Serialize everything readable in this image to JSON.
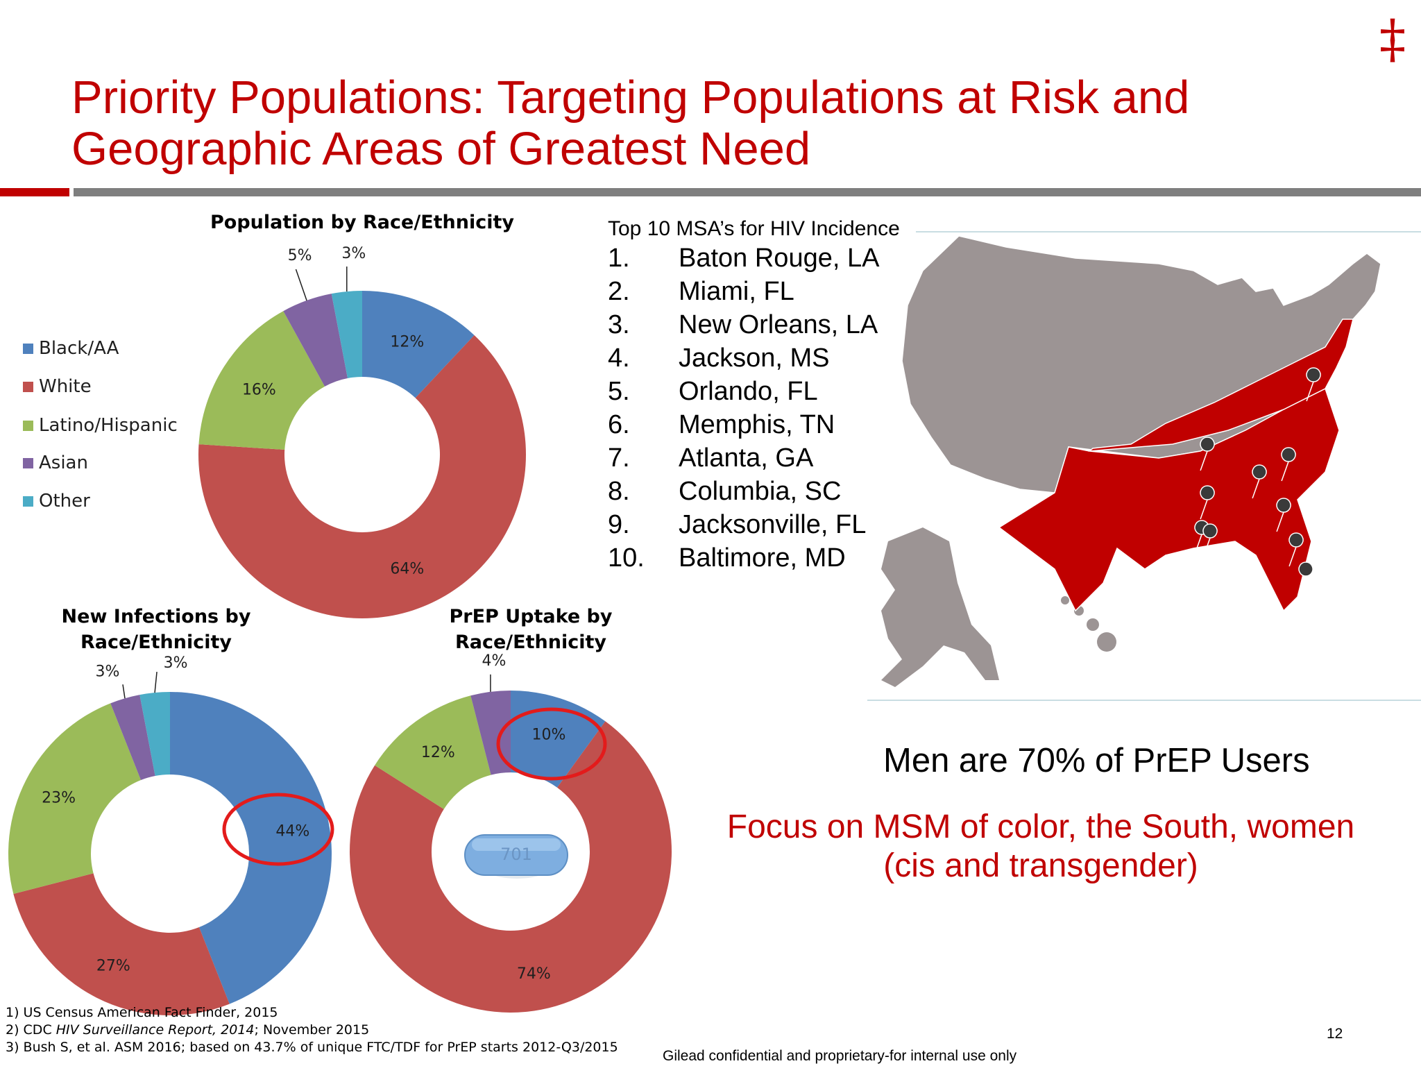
{
  "slide": {
    "logo": "‡",
    "title_line1": "Priority Populations: Targeting Populations at Risk and",
    "title_line2": "Geographic Areas of Greatest Need",
    "page_number": "12",
    "confidential": "Gilead confidential and proprietary-for internal use only",
    "colors": {
      "accent_red": "#c00000",
      "rule_gray": "#7f7f7f"
    }
  },
  "legend": {
    "items": [
      {
        "label": "Black/AA",
        "color": "#4f81bd"
      },
      {
        "label": "White",
        "color": "#c0504d"
      },
      {
        "label": "Latino/Hispanic",
        "color": "#9bbb59"
      },
      {
        "label": "Asian",
        "color": "#8064a2"
      },
      {
        "label": "Other",
        "color": "#4bacc6"
      }
    ]
  },
  "chart_data": [
    {
      "type": "pie",
      "title": "Population by Race/Ethnicity",
      "categories": [
        "Black/AA",
        "White",
        "Latino/Hispanic",
        "Asian",
        "Other"
      ],
      "values": [
        12,
        64,
        16,
        5,
        3
      ],
      "labels": [
        "12%",
        "64%",
        "16%",
        "5%",
        "3%"
      ],
      "colors": [
        "#4f81bd",
        "#c0504d",
        "#9bbb59",
        "#8064a2",
        "#4bacc6"
      ],
      "style": "donut",
      "legend": "left"
    },
    {
      "type": "pie",
      "title": "New Infections by Race/Ethnicity",
      "title_line1": "New Infections by",
      "title_line2": "Race/Ethnicity",
      "categories": [
        "Black/AA",
        "White",
        "Latino/Hispanic",
        "Asian",
        "Other"
      ],
      "values": [
        44,
        27,
        23,
        3,
        3
      ],
      "labels": [
        "44%",
        "27%",
        "23%",
        "3%",
        "3%"
      ],
      "colors": [
        "#4f81bd",
        "#c0504d",
        "#9bbb59",
        "#8064a2",
        "#4bacc6"
      ],
      "style": "donut",
      "highlight": "44%"
    },
    {
      "type": "pie",
      "title": "PrEP Uptake by Race/Ethnicity",
      "title_line1": "PrEP Uptake by",
      "title_line2": "Race/Ethnicity",
      "categories": [
        "Black/AA",
        "White",
        "Latino/Hispanic",
        "Asian"
      ],
      "values": [
        10,
        74,
        12,
        4
      ],
      "labels": [
        "10%",
        "74%",
        "12%",
        "4%"
      ],
      "colors": [
        "#4f81bd",
        "#c0504d",
        "#9bbb59",
        "#8064a2"
      ],
      "style": "donut",
      "highlight": "10%",
      "pill_text": "701"
    }
  ],
  "msa": {
    "title": "Top 10 MSA’s for HIV Incidence",
    "items": [
      {
        "num": "1.",
        "name": "Baton Rouge, LA"
      },
      {
        "num": "2.",
        "name": "Miami, FL"
      },
      {
        "num": "3.",
        "name": "New Orleans, LA"
      },
      {
        "num": "4.",
        "name": "Jackson, MS"
      },
      {
        "num": "5.",
        "name": "Orlando, FL"
      },
      {
        "num": "6.",
        "name": "Memphis, TN"
      },
      {
        "num": "7.",
        "name": "Atlanta, GA"
      },
      {
        "num": "8.",
        "name": "Columbia, SC"
      },
      {
        "num": "9.",
        "name": "Jacksonville, FL"
      },
      {
        "num": "10.",
        "name": "Baltimore, MD"
      }
    ]
  },
  "callouts": {
    "men": "Men are 70% of PrEP Users",
    "focus_line1": "Focus on MSM of color, the South, women",
    "focus_line2": "(cis and transgender)"
  },
  "references": {
    "r1": "1) US Census American Fact Finder, 2015",
    "r2_prefix": "2) CDC ",
    "r2_italic": "HIV Surveillance Report, 2014",
    "r2_suffix": "; November 2015",
    "r3": "3) Bush S, et al. ASM 2016; based on 43.7% of  unique FTC/TDF for PrEP starts 2012-Q3/2015"
  },
  "map": {
    "south_color": "#c00000",
    "other_color": "#9c9494"
  }
}
